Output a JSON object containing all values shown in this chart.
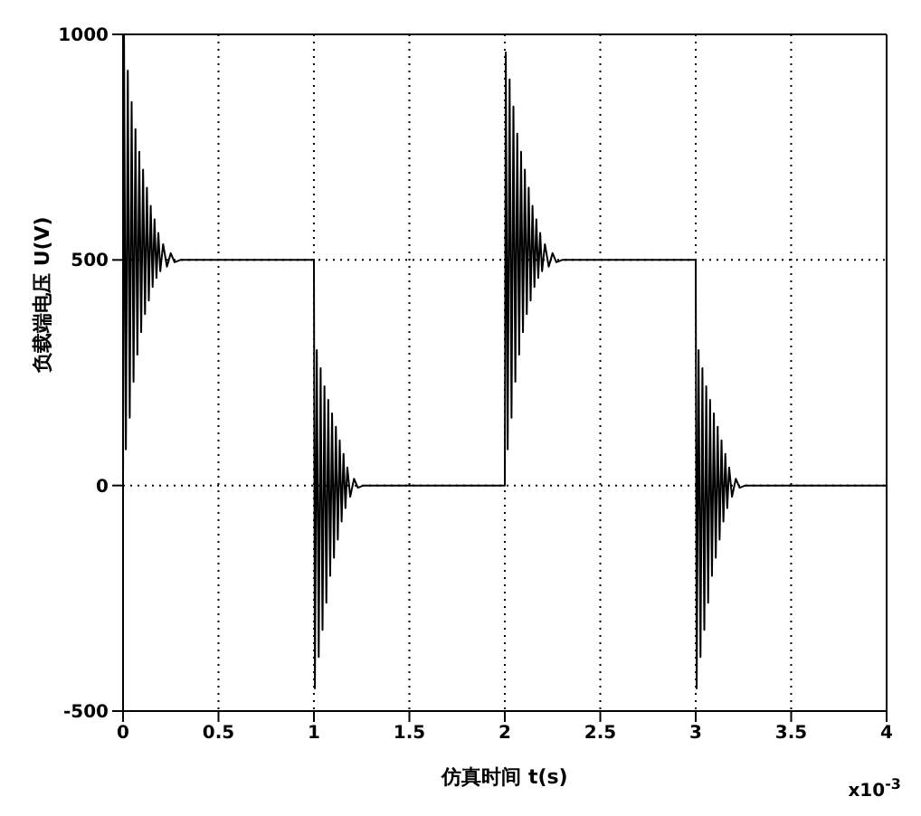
{
  "chart_data": {
    "type": "line",
    "xlabel": "仿真时间 t(s)",
    "ylabel": "负载端电压 U(V)",
    "annotations": [
      "x10$^{-3}$"
    ],
    "xlim": [
      0,
      4
    ],
    "xticks": [
      0,
      0.5,
      1,
      1.5,
      2,
      2.5,
      3,
      3.5,
      4
    ],
    "ylim": [
      -500,
      1000
    ],
    "yticks": [
      -500,
      0,
      500,
      1000
    ],
    "grid": true,
    "marker": "none",
    "line_style": "solid",
    "series": [
      {
        "color": "#000000",
        "x": [
          0,
          0.005,
          0.015,
          0.025,
          0.035,
          0.045,
          0.055,
          0.065,
          0.075,
          0.085,
          0.095,
          0.105,
          0.115,
          0.125,
          0.135,
          0.145,
          0.155,
          0.165,
          0.175,
          0.185,
          0.195,
          0.21,
          0.23,
          0.25,
          0.27,
          0.3,
          1.0,
          1.005,
          1.015,
          1.025,
          1.035,
          1.045,
          1.055,
          1.065,
          1.075,
          1.085,
          1.095,
          1.105,
          1.115,
          1.125,
          1.135,
          1.145,
          1.155,
          1.165,
          1.175,
          1.19,
          1.21,
          1.23,
          1.26,
          2.0,
          2.005,
          2.015,
          2.025,
          2.035,
          2.045,
          2.055,
          2.065,
          2.075,
          2.085,
          2.095,
          2.105,
          2.115,
          2.125,
          2.135,
          2.145,
          2.155,
          2.165,
          2.175,
          2.185,
          2.195,
          2.21,
          2.23,
          2.25,
          2.27,
          2.3,
          3.0,
          3.005,
          3.015,
          3.025,
          3.035,
          3.045,
          3.055,
          3.065,
          3.075,
          3.085,
          3.095,
          3.105,
          3.115,
          3.125,
          3.135,
          3.145,
          3.155,
          3.165,
          3.175,
          3.19,
          3.21,
          3.23,
          3.26,
          4.0
        ],
        "values": [
          0,
          1000,
          80,
          920,
          150,
          850,
          230,
          790,
          290,
          740,
          340,
          700,
          380,
          660,
          410,
          620,
          440,
          590,
          460,
          560,
          475,
          535,
          485,
          515,
          495,
          500,
          500,
          -450,
          300,
          -380,
          260,
          -320,
          220,
          -260,
          190,
          -200,
          160,
          -160,
          130,
          -120,
          100,
          -80,
          70,
          -50,
          40,
          -25,
          15,
          -5,
          0,
          0,
          960,
          80,
          900,
          150,
          840,
          230,
          780,
          290,
          740,
          340,
          700,
          380,
          660,
          410,
          620,
          440,
          590,
          460,
          560,
          475,
          535,
          485,
          515,
          495,
          500,
          500,
          -450,
          300,
          -380,
          260,
          -320,
          220,
          -260,
          190,
          -200,
          160,
          -160,
          130,
          -120,
          100,
          -80,
          70,
          -50,
          40,
          -25,
          15,
          -5,
          0,
          0
        ]
      }
    ]
  }
}
